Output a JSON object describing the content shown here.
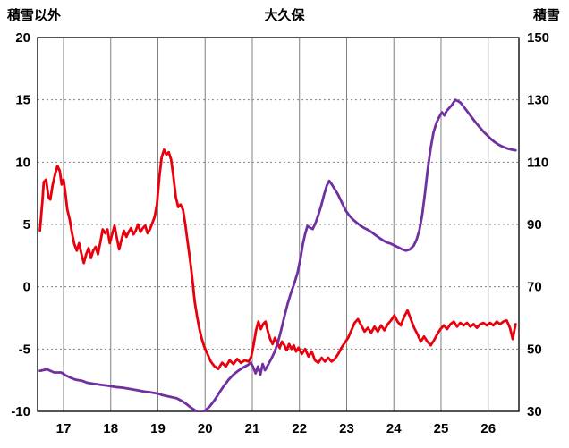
{
  "chart_data": {
    "type": "line",
    "title": "大久保",
    "xlim": [
      16.45,
      26.65
    ],
    "x_ticks": [
      17,
      18,
      19,
      20,
      21,
      22,
      23,
      24,
      25,
      26
    ],
    "left_axis": {
      "label": "積雪以外",
      "ticks": [
        20,
        15,
        10,
        5,
        0,
        -5,
        -10
      ],
      "lim": [
        -10,
        20
      ]
    },
    "right_axis": {
      "label": "積雪",
      "ticks": [
        150,
        130,
        110,
        90,
        70,
        50,
        30
      ],
      "lim": [
        30,
        150
      ]
    },
    "grid": {
      "vertical": "solid",
      "horizontal": "dotted",
      "color": "#808080"
    },
    "frame_color": "#1a1a1a",
    "series": [
      {
        "name": "積雪以外",
        "axis": "left",
        "color": "#e8000d",
        "width": 2.8,
        "points": [
          [
            16.5,
            4.5
          ],
          [
            16.55,
            6.8
          ],
          [
            16.58,
            8.4
          ],
          [
            16.63,
            8.6
          ],
          [
            16.68,
            7.2
          ],
          [
            16.72,
            7.0
          ],
          [
            16.77,
            8.2
          ],
          [
            16.82,
            9.0
          ],
          [
            16.87,
            9.7
          ],
          [
            16.92,
            9.3
          ],
          [
            16.96,
            8.2
          ],
          [
            17.0,
            8.6
          ],
          [
            17.04,
            7.5
          ],
          [
            17.08,
            6.2
          ],
          [
            17.13,
            5.4
          ],
          [
            17.18,
            4.3
          ],
          [
            17.23,
            3.4
          ],
          [
            17.28,
            2.9
          ],
          [
            17.33,
            3.5
          ],
          [
            17.38,
            2.6
          ],
          [
            17.43,
            1.9
          ],
          [
            17.48,
            2.6
          ],
          [
            17.53,
            3.1
          ],
          [
            17.58,
            2.3
          ],
          [
            17.63,
            2.9
          ],
          [
            17.68,
            3.2
          ],
          [
            17.73,
            2.6
          ],
          [
            17.78,
            3.6
          ],
          [
            17.83,
            4.6
          ],
          [
            17.88,
            4.3
          ],
          [
            17.93,
            4.6
          ],
          [
            17.98,
            3.5
          ],
          [
            18.03,
            4.2
          ],
          [
            18.08,
            4.9
          ],
          [
            18.13,
            3.9
          ],
          [
            18.18,
            3.0
          ],
          [
            18.23,
            3.8
          ],
          [
            18.28,
            4.5
          ],
          [
            18.33,
            4.0
          ],
          [
            18.38,
            4.4
          ],
          [
            18.43,
            4.7
          ],
          [
            18.48,
            4.2
          ],
          [
            18.53,
            4.5
          ],
          [
            18.58,
            5.0
          ],
          [
            18.63,
            4.4
          ],
          [
            18.68,
            4.7
          ],
          [
            18.73,
            4.9
          ],
          [
            18.78,
            4.3
          ],
          [
            18.83,
            4.6
          ],
          [
            18.88,
            5.1
          ],
          [
            18.93,
            5.6
          ],
          [
            18.98,
            6.6
          ],
          [
            19.03,
            8.8
          ],
          [
            19.08,
            10.4
          ],
          [
            19.13,
            11.0
          ],
          [
            19.18,
            10.6
          ],
          [
            19.23,
            10.8
          ],
          [
            19.28,
            10.2
          ],
          [
            19.33,
            8.8
          ],
          [
            19.38,
            7.2
          ],
          [
            19.43,
            6.4
          ],
          [
            19.48,
            6.6
          ],
          [
            19.53,
            6.2
          ],
          [
            19.58,
            5.0
          ],
          [
            19.63,
            3.6
          ],
          [
            19.68,
            2.2
          ],
          [
            19.73,
            0.6
          ],
          [
            19.78,
            -1.2
          ],
          [
            19.83,
            -2.4
          ],
          [
            19.88,
            -3.4
          ],
          [
            19.93,
            -4.2
          ],
          [
            19.98,
            -4.8
          ],
          [
            20.05,
            -5.4
          ],
          [
            20.12,
            -6.0
          ],
          [
            20.2,
            -6.4
          ],
          [
            20.28,
            -6.6
          ],
          [
            20.36,
            -6.1
          ],
          [
            20.44,
            -6.4
          ],
          [
            20.52,
            -5.9
          ],
          [
            20.6,
            -6.2
          ],
          [
            20.68,
            -5.8
          ],
          [
            20.76,
            -6.1
          ],
          [
            20.84,
            -5.9
          ],
          [
            20.92,
            -6.0
          ],
          [
            20.98,
            -5.6
          ],
          [
            21.03,
            -4.6
          ],
          [
            21.08,
            -3.5
          ],
          [
            21.13,
            -2.8
          ],
          [
            21.18,
            -3.4
          ],
          [
            21.23,
            -3.0
          ],
          [
            21.28,
            -2.8
          ],
          [
            21.33,
            -3.6
          ],
          [
            21.38,
            -4.2
          ],
          [
            21.43,
            -4.6
          ],
          [
            21.48,
            -4.1
          ],
          [
            21.53,
            -4.5
          ],
          [
            21.58,
            -4.9
          ],
          [
            21.63,
            -4.4
          ],
          [
            21.68,
            -4.7
          ],
          [
            21.73,
            -5.1
          ],
          [
            21.78,
            -4.6
          ],
          [
            21.83,
            -5.0
          ],
          [
            21.88,
            -4.7
          ],
          [
            21.93,
            -5.2
          ],
          [
            21.98,
            -4.9
          ],
          [
            22.05,
            -5.4
          ],
          [
            22.12,
            -5.0
          ],
          [
            22.19,
            -5.6
          ],
          [
            22.26,
            -5.2
          ],
          [
            22.33,
            -5.9
          ],
          [
            22.4,
            -6.1
          ],
          [
            22.47,
            -5.7
          ],
          [
            22.54,
            -6.0
          ],
          [
            22.61,
            -5.7
          ],
          [
            22.68,
            -6.0
          ],
          [
            22.75,
            -5.8
          ],
          [
            22.82,
            -5.4
          ],
          [
            22.89,
            -4.9
          ],
          [
            22.96,
            -4.5
          ],
          [
            23.03,
            -4.1
          ],
          [
            23.1,
            -3.5
          ],
          [
            23.17,
            -2.9
          ],
          [
            23.24,
            -2.6
          ],
          [
            23.31,
            -3.1
          ],
          [
            23.38,
            -3.6
          ],
          [
            23.45,
            -3.3
          ],
          [
            23.52,
            -3.7
          ],
          [
            23.59,
            -3.2
          ],
          [
            23.66,
            -3.6
          ],
          [
            23.73,
            -3.1
          ],
          [
            23.8,
            -3.5
          ],
          [
            23.87,
            -3.0
          ],
          [
            23.94,
            -2.7
          ],
          [
            24.01,
            -2.3
          ],
          [
            24.08,
            -2.8
          ],
          [
            24.15,
            -3.1
          ],
          [
            24.22,
            -2.4
          ],
          [
            24.29,
            -1.9
          ],
          [
            24.36,
            -2.6
          ],
          [
            24.43,
            -3.3
          ],
          [
            24.5,
            -3.8
          ],
          [
            24.57,
            -4.4
          ],
          [
            24.64,
            -4.0
          ],
          [
            24.71,
            -4.4
          ],
          [
            24.78,
            -4.7
          ],
          [
            24.85,
            -4.3
          ],
          [
            24.92,
            -3.8
          ],
          [
            24.99,
            -3.4
          ],
          [
            25.06,
            -3.1
          ],
          [
            25.13,
            -3.4
          ],
          [
            25.2,
            -3.0
          ],
          [
            25.27,
            -2.8
          ],
          [
            25.34,
            -3.2
          ],
          [
            25.41,
            -2.9
          ],
          [
            25.48,
            -3.1
          ],
          [
            25.55,
            -2.9
          ],
          [
            25.62,
            -3.2
          ],
          [
            25.69,
            -3.0
          ],
          [
            25.76,
            -3.3
          ],
          [
            25.83,
            -3.0
          ],
          [
            25.9,
            -2.9
          ],
          [
            25.97,
            -3.1
          ],
          [
            26.04,
            -2.9
          ],
          [
            26.11,
            -3.1
          ],
          [
            26.18,
            -2.8
          ],
          [
            26.25,
            -3.0
          ],
          [
            26.32,
            -2.8
          ],
          [
            26.39,
            -2.7
          ],
          [
            26.46,
            -3.3
          ],
          [
            26.52,
            -4.2
          ],
          [
            26.58,
            -3.0
          ]
        ]
      },
      {
        "name": "積雪",
        "axis": "right",
        "color": "#7030a0",
        "width": 2.8,
        "points": [
          [
            16.5,
            43
          ],
          [
            16.65,
            43.5
          ],
          [
            16.8,
            42.5
          ],
          [
            16.95,
            42.5
          ],
          [
            17.05,
            41.5
          ],
          [
            17.15,
            40.8
          ],
          [
            17.25,
            40.2
          ],
          [
            17.4,
            39.8
          ],
          [
            17.5,
            39.2
          ],
          [
            17.65,
            38.8
          ],
          [
            17.8,
            38.5
          ],
          [
            17.95,
            38.2
          ],
          [
            18.1,
            37.8
          ],
          [
            18.25,
            37.6
          ],
          [
            18.4,
            37.2
          ],
          [
            18.55,
            36.8
          ],
          [
            18.7,
            36.4
          ],
          [
            18.85,
            36.1
          ],
          [
            19.0,
            35.7
          ],
          [
            19.1,
            35.2
          ],
          [
            19.25,
            34.7
          ],
          [
            19.4,
            34.2
          ],
          [
            19.5,
            33.4
          ],
          [
            19.6,
            32.4
          ],
          [
            19.7,
            31.2
          ],
          [
            19.8,
            30.2
          ],
          [
            19.9,
            29.6
          ],
          [
            20.0,
            30.2
          ],
          [
            20.1,
            31.6
          ],
          [
            20.2,
            33.6
          ],
          [
            20.3,
            36.0
          ],
          [
            20.4,
            38.2
          ],
          [
            20.5,
            40.2
          ],
          [
            20.6,
            41.8
          ],
          [
            20.7,
            43.0
          ],
          [
            20.8,
            44.0
          ],
          [
            20.9,
            44.8
          ],
          [
            20.97,
            45.6
          ],
          [
            21.02,
            44.2
          ],
          [
            21.07,
            42.2
          ],
          [
            21.12,
            44.4
          ],
          [
            21.17,
            41.8
          ],
          [
            21.22,
            45.2
          ],
          [
            21.27,
            43.2
          ],
          [
            21.33,
            44.8
          ],
          [
            21.4,
            46.8
          ],
          [
            21.47,
            49.0
          ],
          [
            21.54,
            52.0
          ],
          [
            21.61,
            56.0
          ],
          [
            21.68,
            60.5
          ],
          [
            21.75,
            64.5
          ],
          [
            21.82,
            68.0
          ],
          [
            21.89,
            71.0
          ],
          [
            21.96,
            74.5
          ],
          [
            22.02,
            79.0
          ],
          [
            22.07,
            83.5
          ],
          [
            22.12,
            87.0
          ],
          [
            22.17,
            89.5
          ],
          [
            22.22,
            89.0
          ],
          [
            22.28,
            88.5
          ],
          [
            22.34,
            90.5
          ],
          [
            22.4,
            93.0
          ],
          [
            22.46,
            96.0
          ],
          [
            22.52,
            99.5
          ],
          [
            22.58,
            102.5
          ],
          [
            22.63,
            104.0
          ],
          [
            22.68,
            103.0
          ],
          [
            22.74,
            101.5
          ],
          [
            22.82,
            99.5
          ],
          [
            22.9,
            97.0
          ],
          [
            22.98,
            94.5
          ],
          [
            23.06,
            92.8
          ],
          [
            23.14,
            91.5
          ],
          [
            23.22,
            90.5
          ],
          [
            23.3,
            89.5
          ],
          [
            23.38,
            88.8
          ],
          [
            23.46,
            88.2
          ],
          [
            23.54,
            87.4
          ],
          [
            23.62,
            86.5
          ],
          [
            23.7,
            85.6
          ],
          [
            23.78,
            84.8
          ],
          [
            23.86,
            84.2
          ],
          [
            23.94,
            83.8
          ],
          [
            24.02,
            83.2
          ],
          [
            24.1,
            82.6
          ],
          [
            24.18,
            82.0
          ],
          [
            24.26,
            81.6
          ],
          [
            24.34,
            82.0
          ],
          [
            24.42,
            83.2
          ],
          [
            24.48,
            85.0
          ],
          [
            24.54,
            88.0
          ],
          [
            24.6,
            93.0
          ],
          [
            24.66,
            100.0
          ],
          [
            24.72,
            108.0
          ],
          [
            24.78,
            114.5
          ],
          [
            24.84,
            119.5
          ],
          [
            24.9,
            122.5
          ],
          [
            24.96,
            124.5
          ],
          [
            25.02,
            126.0
          ],
          [
            25.07,
            125.0
          ],
          [
            25.12,
            126.5
          ],
          [
            25.18,
            127.5
          ],
          [
            25.24,
            128.5
          ],
          [
            25.3,
            130.0
          ],
          [
            25.36,
            129.6
          ],
          [
            25.42,
            129.0
          ],
          [
            25.5,
            127.4
          ],
          [
            25.58,
            125.8
          ],
          [
            25.66,
            124.2
          ],
          [
            25.74,
            122.6
          ],
          [
            25.82,
            121.2
          ],
          [
            25.9,
            119.8
          ],
          [
            25.98,
            118.6
          ],
          [
            26.06,
            117.4
          ],
          [
            26.14,
            116.4
          ],
          [
            26.22,
            115.6
          ],
          [
            26.3,
            115.0
          ],
          [
            26.4,
            114.4
          ],
          [
            26.5,
            114.0
          ],
          [
            26.58,
            113.8
          ]
        ]
      }
    ]
  }
}
